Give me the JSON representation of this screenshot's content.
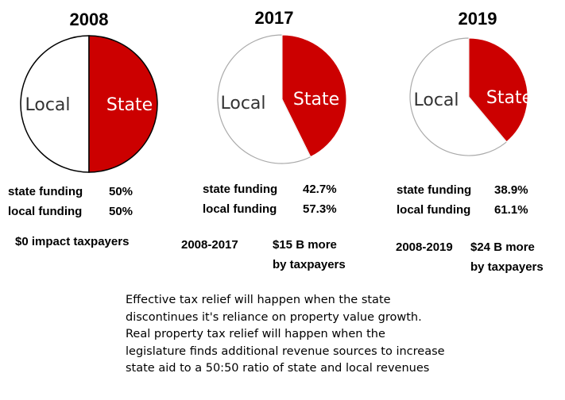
{
  "accent_color": "#cc0000",
  "chart_data": [
    {
      "type": "pie",
      "title": "2008",
      "slices": [
        {
          "label": "State",
          "value": 50,
          "color": "#cc0000"
        },
        {
          "label": "Local",
          "value": 50,
          "color": "#ffffff"
        }
      ],
      "stats": {
        "state_label": "state funding",
        "state_value": "50%",
        "local_label": "local funding",
        "local_value": "50%",
        "impact_text": "$0 impact taxpayers"
      }
    },
    {
      "type": "pie",
      "title": "2017",
      "slices": [
        {
          "label": "State",
          "value": 42.7,
          "color": "#cc0000"
        },
        {
          "label": "Local",
          "value": 57.3,
          "color": "#ffffff"
        }
      ],
      "stats": {
        "state_label": "state funding",
        "state_value": "42.7%",
        "local_label": "local funding",
        "local_value": "57.3%",
        "period": "2008-2017",
        "impact_line1": "$15 B more",
        "impact_line2": "by taxpayers"
      }
    },
    {
      "type": "pie",
      "title": "2019",
      "slices": [
        {
          "label": "State",
          "value": 38.9,
          "color": "#cc0000"
        },
        {
          "label": "Local",
          "value": 61.1,
          "color": "#ffffff"
        }
      ],
      "stats": {
        "state_label": "state funding",
        "state_value": "38.9%",
        "local_label": "local funding",
        "local_value": "61.1%",
        "period": "2008-2019",
        "impact_line1": "$24 B  more",
        "impact_line2": "by taxpayers"
      }
    }
  ],
  "footnote": {
    "lines": [
      "Effective tax relief will happen when the state",
      "discontinues it's reliance on property value growth.",
      "Real property tax relief will happen when the",
      "legislature finds additional revenue sources to increase",
      "state aid to a 50:50 ratio of state and local revenues"
    ]
  }
}
